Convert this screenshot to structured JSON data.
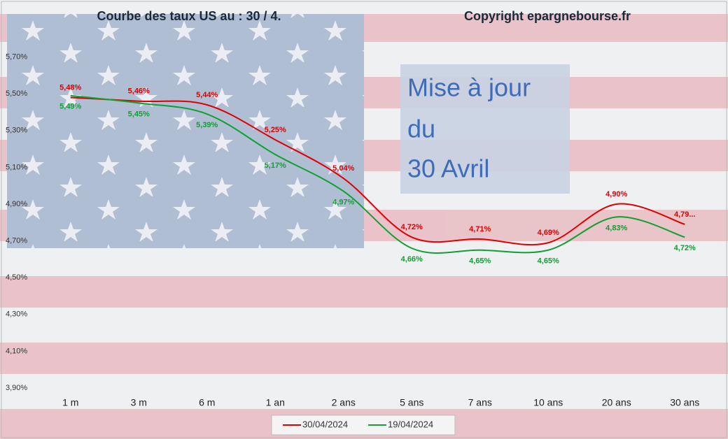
{
  "chart_data": {
    "type": "line",
    "title": "Courbe des taux US au : 30 / 4.",
    "subtitle": "Copyright epargnebourse.fr",
    "annotation": [
      "Mise à jour",
      "du",
      "30 Avril"
    ],
    "categories": [
      "1 m",
      "3 m",
      "6 m",
      "1 an",
      "2 ans",
      "5 ans",
      "7 ans",
      "10 ans",
      "20 ans",
      "30 ans"
    ],
    "series": [
      {
        "name": "30/04/2024",
        "color": "#e00000",
        "values": [
          5.48,
          5.46,
          5.44,
          5.25,
          5.04,
          4.72,
          4.71,
          4.69,
          4.9,
          4.79
        ],
        "value_labels": [
          "5,48%",
          "5,46%",
          "5,44%",
          "5,25%",
          "5,04%",
          "4,72%",
          "4,71%",
          "4,69%",
          "4,90%",
          "4,79..."
        ]
      },
      {
        "name": "19/04/2024",
        "color": "#10a030",
        "values": [
          5.49,
          5.45,
          5.39,
          5.17,
          4.97,
          4.66,
          4.65,
          4.65,
          4.83,
          4.72
        ],
        "value_labels": [
          "5,49%",
          "5,45%",
          "5,39%",
          "5,17%",
          "4,97%",
          "4,66%",
          "4,65%",
          "4,65%",
          "4,83%",
          "4,72%"
        ]
      }
    ],
    "ylim": [
      3.9,
      5.9
    ],
    "yticks": [
      {
        "value": 3.9,
        "label": "3,90%"
      },
      {
        "value": 4.1,
        "label": "4,10%"
      },
      {
        "value": 4.3,
        "label": "4,30%"
      },
      {
        "value": 4.5,
        "label": "4,50%"
      },
      {
        "value": 4.7,
        "label": "4,70%"
      },
      {
        "value": 4.9,
        "label": "4,90%"
      },
      {
        "value": 5.1,
        "label": "5,10%"
      },
      {
        "value": 5.3,
        "label": "5,30%"
      },
      {
        "value": 5.5,
        "label": "5,50%"
      },
      {
        "value": 5.7,
        "label": "5,70%"
      }
    ],
    "legend": "bottom"
  }
}
